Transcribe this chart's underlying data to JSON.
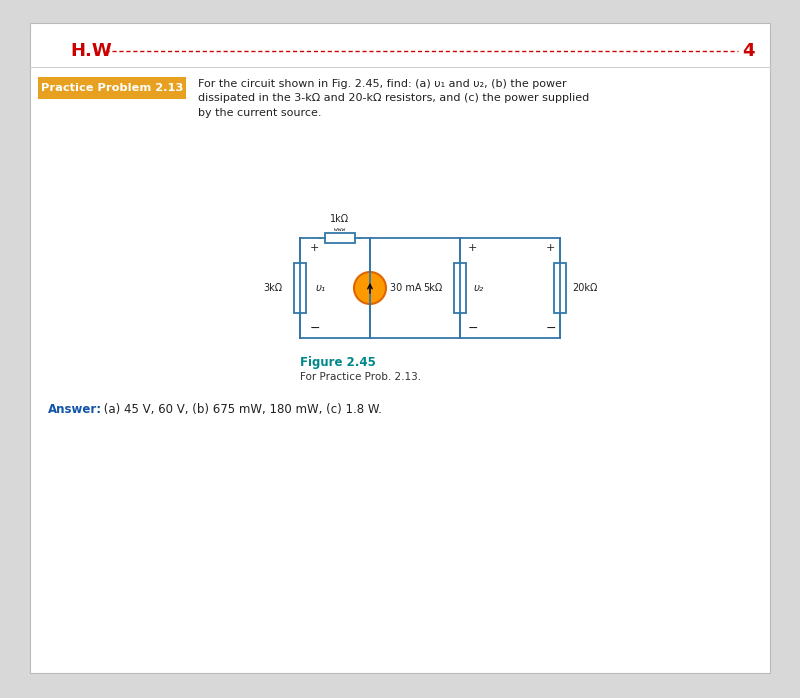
{
  "hw_text": "H.W",
  "hw_number": "4",
  "hw_line_color": "#cc0000",
  "hw_text_color": "#cc0000",
  "hw_fontsize": 13,
  "bg_color": "#d8d8d8",
  "page_bg": "#ffffff",
  "problem_label": "Practice Problem 2.13",
  "problem_label_bg": "#e8a020",
  "problem_label_color": "#ffffff",
  "problem_text": "For the circuit shown in Fig. 2.45, find: (a) υ₁ and υ₂, (b) the power\ndissipated in the 3-kΩ and 20-kΩ resistors, and (c) the power supplied\nby the current source.",
  "problem_text_color": "#222222",
  "figure_label": "Figure 2.45",
  "figure_sublabel": "For Practice Prob. 2.13.",
  "figure_label_color": "#008888",
  "answer_label": "Answer:",
  "answer_text": " (a) 45 V, 60 V, (b) 675 mW, 180 mW, (c) 1.8 W.",
  "answer_label_color": "#1155aa",
  "answer_text_color": "#222222",
  "wire_color": "#3377aa",
  "resistor_color": "#3377aa",
  "source_fill": "#ff9900",
  "source_border": "#dd6600",
  "lbl_color": "#222222",
  "lbl_fs": 7.0
}
